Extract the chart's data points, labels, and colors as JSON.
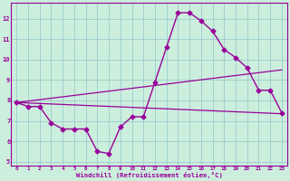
{
  "xlabel": "Windchill (Refroidissement éolien,°C)",
  "xlim": [
    -0.5,
    23.5
  ],
  "ylim": [
    4.8,
    12.8
  ],
  "yticks": [
    5,
    6,
    7,
    8,
    9,
    10,
    11,
    12
  ],
  "xticks": [
    0,
    1,
    2,
    3,
    4,
    5,
    6,
    7,
    8,
    9,
    10,
    11,
    12,
    13,
    14,
    15,
    16,
    17,
    18,
    19,
    20,
    21,
    22,
    23
  ],
  "background_color": "#cceedd",
  "line_color": "#990099",
  "grid_color": "#99cccc",
  "series_main": {
    "x": [
      0,
      1,
      2,
      3,
      4,
      5,
      6,
      7,
      8,
      9,
      10,
      11,
      12,
      13,
      14,
      15,
      16,
      17,
      18,
      19,
      20,
      21,
      22,
      23
    ],
    "y": [
      7.9,
      7.7,
      7.7,
      6.9,
      6.6,
      6.6,
      6.6,
      5.5,
      5.4,
      6.7,
      7.2,
      7.2,
      8.9,
      10.6,
      12.3,
      12.3,
      11.9,
      11.4,
      10.5,
      10.1,
      9.6,
      8.5,
      8.5,
      7.4
    ]
  },
  "series_upper": {
    "x": [
      0,
      23
    ],
    "y": [
      7.9,
      9.5
    ]
  },
  "series_lower": {
    "x": [
      0,
      23
    ],
    "y": [
      7.9,
      7.35
    ]
  }
}
